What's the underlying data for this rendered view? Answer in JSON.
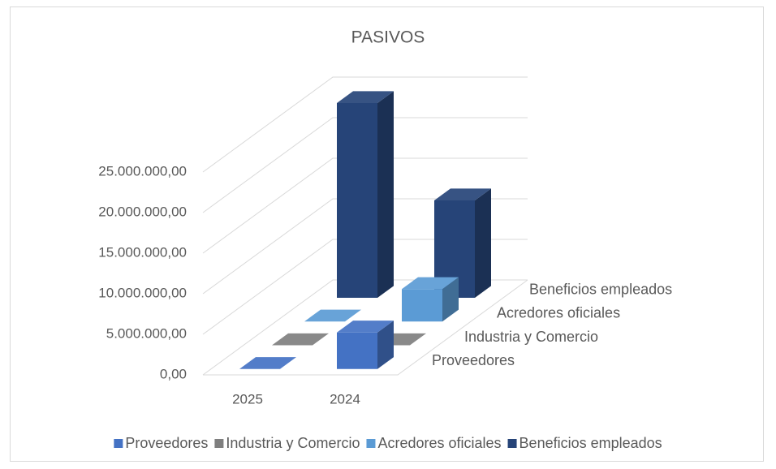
{
  "chart_data": {
    "type": "bar3d",
    "title": "PASIVOS",
    "categories": [
      "2025",
      "2024"
    ],
    "series": [
      {
        "name": "Proveedores",
        "color": "#4472c4",
        "values": [
          0,
          4500000
        ]
      },
      {
        "name": "Industria y Comercio",
        "color": "#7f7f7f",
        "values": [
          0,
          0
        ]
      },
      {
        "name": "Acredores oficiales",
        "color": "#5b9bd5",
        "values": [
          0,
          4000000
        ]
      },
      {
        "name": "Beneficios empleados",
        "color": "#264478",
        "values": [
          24000000,
          12000000
        ]
      }
    ],
    "ylim": [
      0,
      25000000
    ],
    "yticks": [
      {
        "value": 0,
        "label": "0,00"
      },
      {
        "value": 5000000,
        "label": "5.000.000,00"
      },
      {
        "value": 10000000,
        "label": "10.000.000,00"
      },
      {
        "value": 15000000,
        "label": "15.000.000,00"
      },
      {
        "value": 20000000,
        "label": "20.000.000,00"
      },
      {
        "value": 25000000,
        "label": "25.000.000,00"
      }
    ],
    "grid": true,
    "legend": "bottom"
  }
}
